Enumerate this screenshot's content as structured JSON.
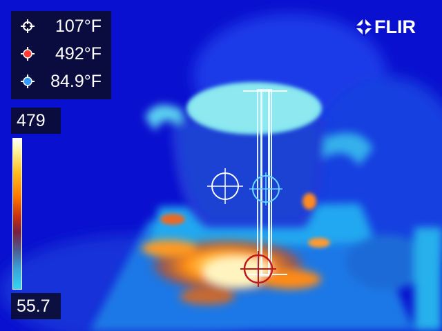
{
  "brand": {
    "name": "FLIR"
  },
  "measurements": [
    {
      "value": "107°F",
      "icon": "white-crosshair-icon",
      "color": "#ffffff"
    },
    {
      "value": "492°F",
      "icon": "hot-spot-crosshair-icon",
      "color": "#ff3a30"
    },
    {
      "value": "84.9°F",
      "icon": "cold-spot-crosshair-icon",
      "color": "#2e9bff"
    }
  ],
  "scale": {
    "max": "479",
    "min": "55.7"
  },
  "colors": {
    "background_cold": "#0a0fd0",
    "panel": "#0a0a28",
    "hot_marker": "#c01818",
    "pot_lid": "#7fe4ee"
  }
}
